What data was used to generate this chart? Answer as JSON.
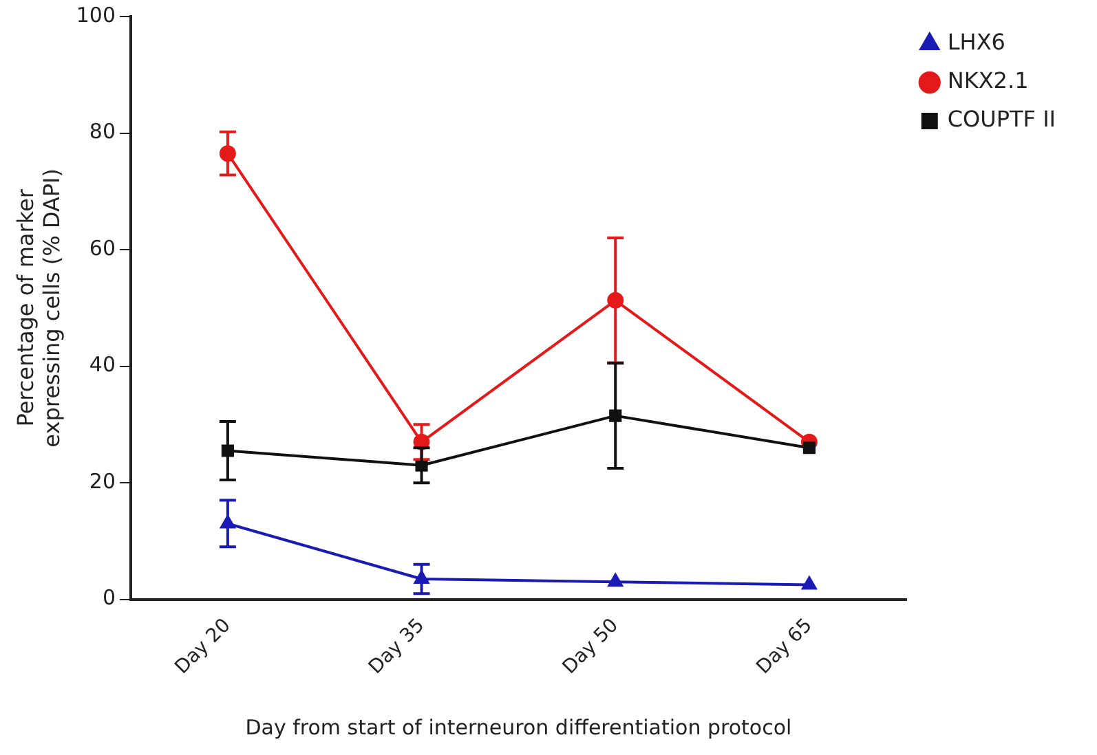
{
  "chart_data": {
    "type": "line",
    "xlabel": "Day from start of interneuron differentiation protocol",
    "ylabel": "Percentage of marker\nexpressing cells (% DAPI)",
    "categories": [
      "Day 20",
      "Day 35",
      "Day 50",
      "Day 65"
    ],
    "ylim": [
      0,
      100
    ],
    "yticks": [
      0,
      20,
      40,
      60,
      80,
      100
    ],
    "grid": false,
    "legend": "top right",
    "series": [
      {
        "name": "LHX6",
        "color": "#1a1ab4",
        "marker": "triangle",
        "values": [
          13,
          3.5,
          3,
          2.5
        ],
        "errors": [
          4,
          2.5,
          null,
          null
        ]
      },
      {
        "name": "NKX2.1",
        "color": "#e41a1a",
        "marker": "circle",
        "values": [
          76.5,
          27,
          51.3,
          27
        ],
        "errors": [
          3.7,
          3,
          10.7,
          null
        ]
      },
      {
        "name": "COUPTF II",
        "color": "#111111",
        "marker": "square",
        "values": [
          25.5,
          23,
          31.5,
          26
        ],
        "errors": [
          5,
          3,
          9,
          null
        ]
      }
    ]
  }
}
